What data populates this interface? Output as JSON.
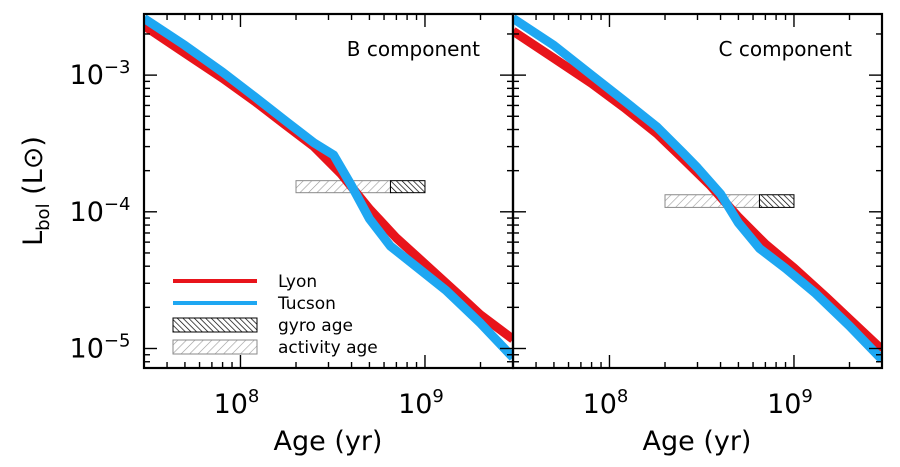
{
  "chart_data": [
    {
      "type": "line",
      "panel_label": "B component",
      "xlabel": "Age (yr)",
      "ylabel": "Lbol (L⊙)",
      "xscale": "log",
      "yscale": "log",
      "xlim": [
        30000000,
        3000000000
      ],
      "ylim": [
        7.2e-06,
        0.0028
      ],
      "x_tick_labels": [
        {
          "base": "10",
          "exp": "8"
        },
        {
          "base": "10",
          "exp": "9"
        }
      ],
      "y_tick_labels": [
        {
          "base": "10",
          "exp": "−3"
        },
        {
          "base": "10",
          "exp": "−4"
        },
        {
          "base": "10",
          "exp": "−5"
        }
      ],
      "series": [
        {
          "name": "Lyon",
          "color": "#e8141b",
          "x": [
            30000000,
            50000000,
            80000000,
            120000000,
            180000000,
            250000000,
            350000000,
            500000000,
            700000000,
            1000000000,
            1500000000,
            2000000000,
            3000000000
          ],
          "y": [
            0.0023,
            0.00145,
            0.00095,
            0.00064,
            0.00042,
            0.0003,
            0.00019,
            0.000105,
            6.43e-05,
            4.16e-05,
            2.52e-05,
            1.76e-05,
            1.17e-05
          ]
        },
        {
          "name": "Tucson",
          "color": "#1ea7f2",
          "x": [
            30000000,
            50000000,
            80000000,
            120000000,
            180000000,
            250000000,
            320000000,
            400000000,
            500000000,
            650000000,
            900000000,
            1300000000,
            2000000000,
            3000000000
          ],
          "y": [
            0.0026,
            0.00165,
            0.00105,
            0.00069,
            0.00045,
            0.00032,
            0.00026,
            0.000155,
            8.9e-05,
            5.6e-05,
            3.96e-05,
            2.66e-05,
            1.53e-05,
            8.6e-06
          ]
        }
      ],
      "ranges": [
        {
          "name": "activity age",
          "x": [
            200000000,
            650000000
          ],
          "y": [
            0.000138,
            0.000169
          ]
        },
        {
          "name": "gyro age",
          "x": [
            650000000,
            1000000000
          ],
          "y": [
            0.000138,
            0.000169
          ]
        }
      ],
      "legend": {
        "position": "bottom-left",
        "items": [
          {
            "label": "Lyon",
            "kind": "line",
            "color": "#e8141b"
          },
          {
            "label": "Tucson",
            "kind": "line",
            "color": "#1ea7f2"
          },
          {
            "label": "gyro age",
            "kind": "dense-hatch"
          },
          {
            "label": "activity age",
            "kind": "light-hatch"
          }
        ]
      }
    },
    {
      "type": "line",
      "panel_label": "C component",
      "xlabel": "Age (yr)",
      "xscale": "log",
      "yscale": "log",
      "xlim": [
        30000000,
        3000000000
      ],
      "ylim": [
        7.2e-06,
        0.0028
      ],
      "x_tick_labels": [
        {
          "base": "10",
          "exp": "8"
        },
        {
          "base": "10",
          "exp": "9"
        }
      ],
      "series": [
        {
          "name": "Lyon",
          "color": "#e8141b",
          "x": [
            30000000,
            50000000,
            80000000,
            120000000,
            180000000,
            250000000,
            350000000,
            500000000,
            700000000,
            1000000000,
            1500000000,
            2000000000,
            3000000000
          ],
          "y": [
            0.0021,
            0.00133,
            0.00087,
            0.00058,
            0.000375,
            0.000245,
            0.000157,
            9.15e-05,
            5.8e-05,
            3.88e-05,
            2.36e-05,
            1.64e-05,
            9.8e-06
          ]
        },
        {
          "name": "Tucson",
          "color": "#1ea7f2",
          "x": [
            30000000,
            50000000,
            80000000,
            120000000,
            180000000,
            250000000,
            300000000,
            400000000,
            500000000,
            650000000,
            900000000,
            1300000000,
            2000000000,
            3000000000
          ],
          "y": [
            0.0026,
            0.00165,
            0.001,
            0.00065,
            0.00042,
            0.00027,
            0.00021,
            0.000135,
            8.3e-05,
            5.4e-05,
            3.86e-05,
            2.55e-05,
            1.46e-05,
            8.3e-06
          ]
        }
      ],
      "ranges": [
        {
          "name": "activity age",
          "x": [
            200000000,
            650000000
          ],
          "y": [
            0.0001077,
            0.0001333
          ]
        },
        {
          "name": "gyro age",
          "x": [
            650000000,
            1000000000
          ],
          "y": [
            0.0001077,
            0.0001333
          ]
        }
      ]
    }
  ]
}
